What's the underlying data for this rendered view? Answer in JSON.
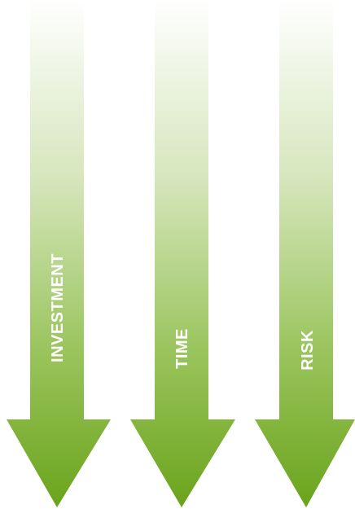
{
  "diagram": {
    "gradient": {
      "top_color": "#ffffff",
      "bottom_color": "#6aa31b"
    },
    "arrows": [
      {
        "label": "INVESTMENT",
        "icon": "down-arrow-icon"
      },
      {
        "label": "TIME",
        "icon": "down-arrow-icon"
      },
      {
        "label": "RISK",
        "icon": "down-arrow-icon"
      }
    ]
  }
}
